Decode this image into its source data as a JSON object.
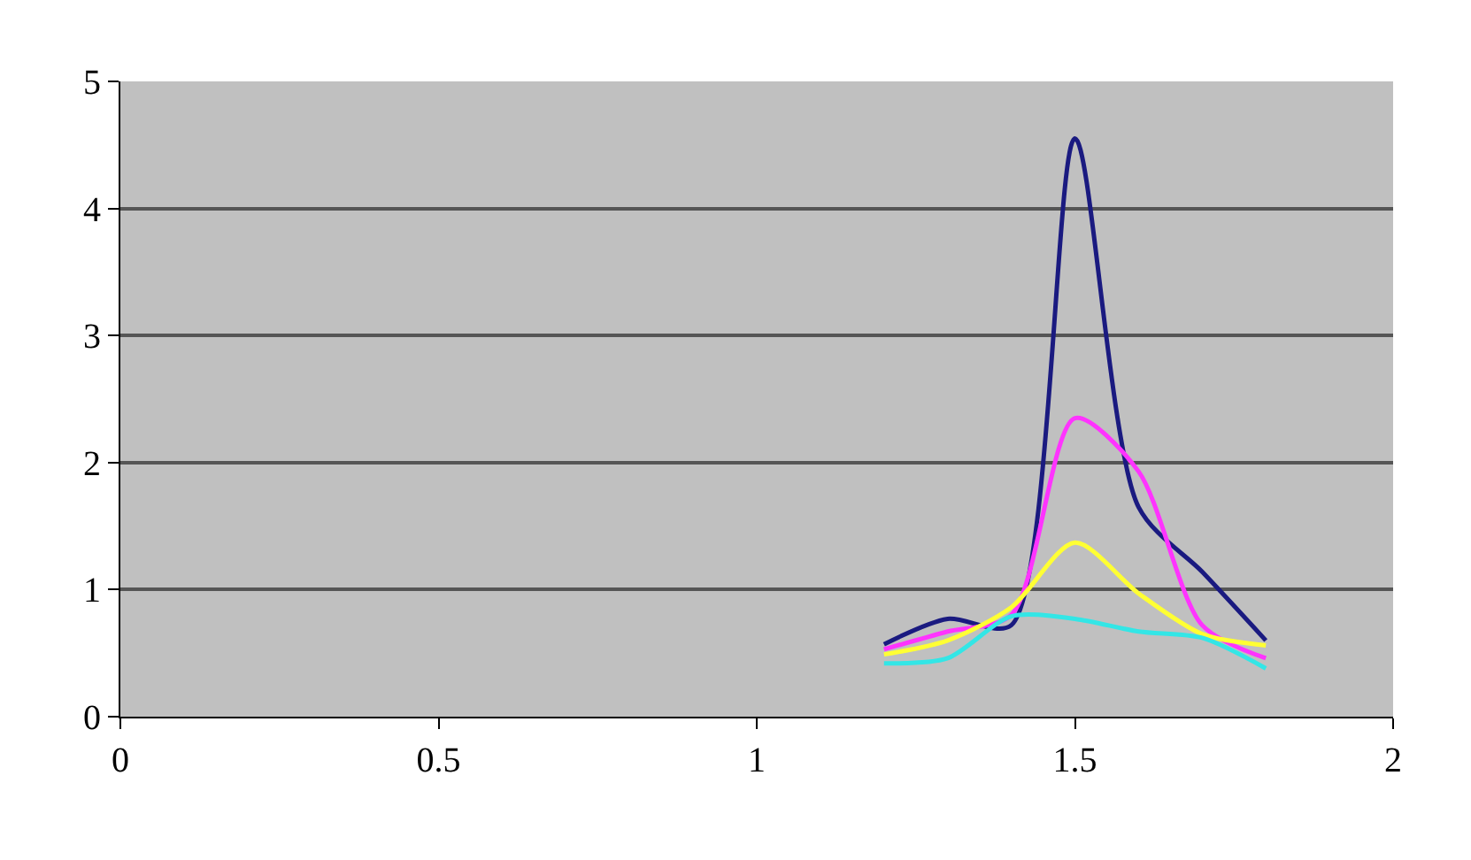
{
  "chart_data": {
    "type": "line",
    "x": [
      1.2,
      1.3,
      1.4,
      1.5,
      1.6,
      1.7,
      1.8
    ],
    "series": [
      {
        "color": "#1a1a80",
        "values": [
          0.57,
          0.77,
          0.72,
          4.55,
          1.65,
          1.14,
          0.6
        ]
      },
      {
        "color": "#ff33ff",
        "values": [
          0.53,
          0.67,
          0.8,
          2.35,
          1.93,
          0.72,
          0.46
        ]
      },
      {
        "color": "#ffff33",
        "values": [
          0.49,
          0.6,
          0.86,
          1.37,
          0.97,
          0.65,
          0.56
        ]
      },
      {
        "color": "#33e6e6",
        "values": [
          0.42,
          0.46,
          0.79,
          0.77,
          0.67,
          0.62,
          0.38
        ]
      }
    ],
    "xlim": [
      0,
      2
    ],
    "xticks": [
      0,
      0.5,
      1,
      1.5,
      2
    ],
    "ylim": [
      0,
      5
    ],
    "yticks": [
      0,
      1,
      2,
      3,
      4,
      5
    ],
    "grid": "y",
    "marker": "none",
    "line_style": "solid"
  }
}
